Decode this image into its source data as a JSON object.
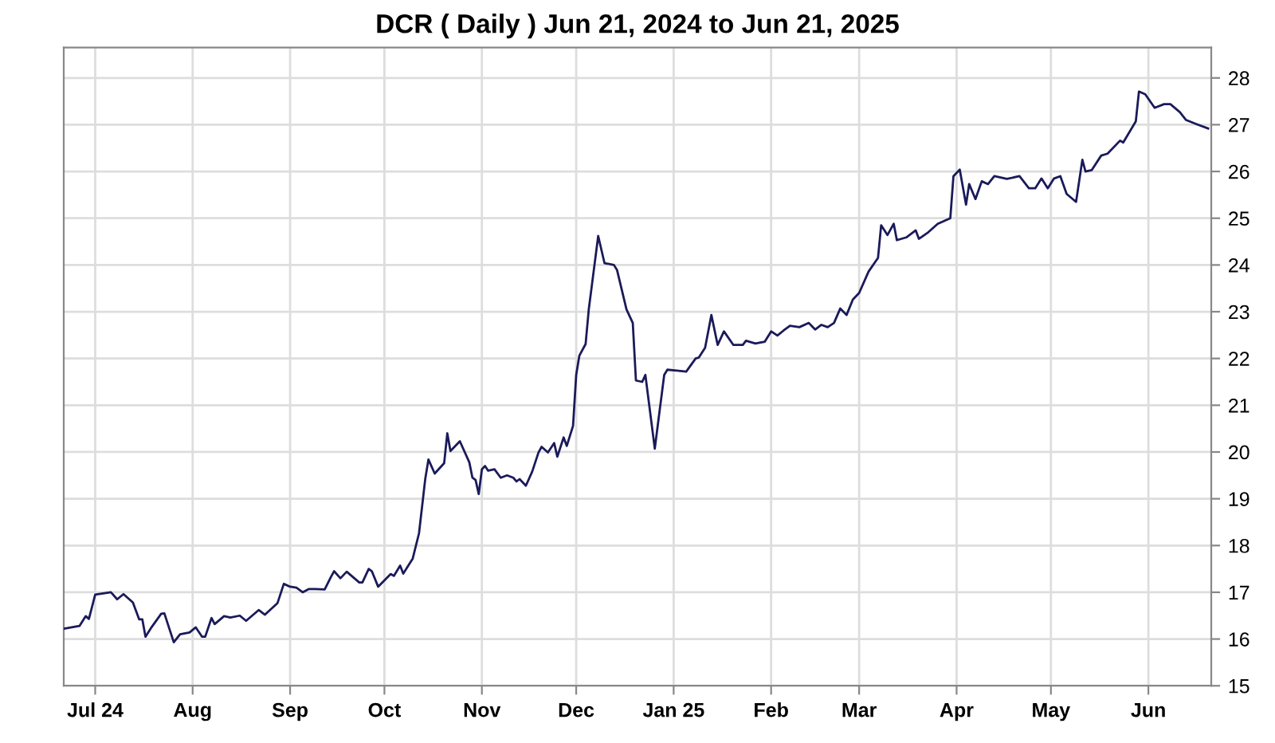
{
  "chart_data": {
    "type": "line",
    "title": "DCR ( Daily ) Jun 21, 2024 to Jun 21, 2025",
    "x": [
      "2024-06-21",
      "2024-06-26",
      "2024-06-28",
      "2024-06-29",
      "2024-07-01",
      "2024-07-06",
      "2024-07-08",
      "2024-07-10",
      "2024-07-13",
      "2024-07-15",
      "2024-07-16",
      "2024-07-17",
      "2024-07-19",
      "2024-07-22",
      "2024-07-23",
      "2024-07-26",
      "2024-07-28",
      "2024-07-31",
      "2024-08-02",
      "2024-08-04",
      "2024-08-05",
      "2024-08-07",
      "2024-08-08",
      "2024-08-11",
      "2024-08-13",
      "2024-08-16",
      "2024-08-18",
      "2024-08-22",
      "2024-08-24",
      "2024-08-28",
      "2024-08-30",
      "2024-09-01",
      "2024-09-03",
      "2024-09-05",
      "2024-09-07",
      "2024-09-09",
      "2024-09-12",
      "2024-09-14",
      "2024-09-15",
      "2024-09-17",
      "2024-09-19",
      "2024-09-23",
      "2024-09-24",
      "2024-09-26",
      "2024-09-27",
      "2024-09-29",
      "2024-10-03",
      "2024-10-04",
      "2024-10-06",
      "2024-10-07",
      "2024-10-10",
      "2024-10-12",
      "2024-10-14",
      "2024-10-15",
      "2024-10-17",
      "2024-10-20",
      "2024-10-21",
      "2024-10-22",
      "2024-10-25",
      "2024-10-28",
      "2024-10-29",
      "2024-10-30",
      "2024-10-31",
      "2024-11-01",
      "2024-11-02",
      "2024-11-03",
      "2024-11-05",
      "2024-11-07",
      "2024-11-09",
      "2024-11-11",
      "2024-11-12",
      "2024-11-13",
      "2024-11-15",
      "2024-11-17",
      "2024-11-19",
      "2024-11-20",
      "2024-11-22",
      "2024-11-24",
      "2024-11-25",
      "2024-11-27",
      "2024-11-28",
      "2024-11-30",
      "2024-12-01",
      "2024-12-02",
      "2024-12-04",
      "2024-12-05",
      "2024-12-08",
      "2024-12-10",
      "2024-12-13",
      "2024-12-14",
      "2024-12-17",
      "2024-12-19",
      "2024-12-20",
      "2024-12-22",
      "2024-12-23",
      "2024-12-26",
      "2024-12-27",
      "2024-12-29",
      "2024-12-30",
      "2025-01-02",
      "2025-01-05",
      "2025-01-08",
      "2025-01-09",
      "2025-01-11",
      "2025-01-13",
      "2025-01-15",
      "2025-01-17",
      "2025-01-20",
      "2025-01-23",
      "2025-01-24",
      "2025-01-27",
      "2025-01-30",
      "2025-02-01",
      "2025-02-03",
      "2025-02-05",
      "2025-02-07",
      "2025-02-10",
      "2025-02-13",
      "2025-02-15",
      "2025-02-17",
      "2025-02-19",
      "2025-02-21",
      "2025-02-23",
      "2025-02-25",
      "2025-02-27",
      "2025-03-01",
      "2025-03-04",
      "2025-03-07",
      "2025-03-08",
      "2025-03-10",
      "2025-03-12",
      "2025-03-13",
      "2025-03-16",
      "2025-03-19",
      "2025-03-20",
      "2025-03-23",
      "2025-03-26",
      "2025-03-30",
      "2025-03-31",
      "2025-04-02",
      "2025-04-04",
      "2025-04-05",
      "2025-04-07",
      "2025-04-09",
      "2025-04-11",
      "2025-04-13",
      "2025-04-17",
      "2025-04-21",
      "2025-04-24",
      "2025-04-26",
      "2025-04-28",
      "2025-04-30",
      "2025-05-02",
      "2025-05-04",
      "2025-05-06",
      "2025-05-09",
      "2025-05-11",
      "2025-05-12",
      "2025-05-14",
      "2025-05-17",
      "2025-05-19",
      "2025-05-23",
      "2025-05-24",
      "2025-05-28",
      "2025-05-29",
      "2025-05-31",
      "2025-06-03",
      "2025-06-06",
      "2025-06-08",
      "2025-06-11",
      "2025-06-13",
      "2025-06-16",
      "2025-06-20"
    ],
    "series": [
      {
        "color": "#1a1a5a",
        "values": [
          16.22,
          16.28,
          16.49,
          16.43,
          16.95,
          17.0,
          16.85,
          16.96,
          16.78,
          16.42,
          16.42,
          16.05,
          16.26,
          16.54,
          16.55,
          15.93,
          16.1,
          16.14,
          16.25,
          16.05,
          16.05,
          16.45,
          16.32,
          16.49,
          16.46,
          16.5,
          16.39,
          16.62,
          16.52,
          16.77,
          17.18,
          17.12,
          17.1,
          17.0,
          17.07,
          17.07,
          17.06,
          17.33,
          17.45,
          17.3,
          17.44,
          17.21,
          17.21,
          17.5,
          17.45,
          17.12,
          17.39,
          17.35,
          17.57,
          17.4,
          17.72,
          18.26,
          19.43,
          19.84,
          19.54,
          19.76,
          20.4,
          20.02,
          20.23,
          19.78,
          19.45,
          19.4,
          19.1,
          19.63,
          19.7,
          19.6,
          19.63,
          19.45,
          19.5,
          19.45,
          19.37,
          19.42,
          19.28,
          19.58,
          19.99,
          20.11,
          19.99,
          20.19,
          19.9,
          20.31,
          20.13,
          20.56,
          21.65,
          22.06,
          22.31,
          23.05,
          24.62,
          24.04,
          24.0,
          23.89,
          23.05,
          22.76,
          21.53,
          21.5,
          21.65,
          20.07,
          20.6,
          21.65,
          21.76,
          21.74,
          21.72,
          22.0,
          22.02,
          22.23,
          22.93,
          22.29,
          22.58,
          22.29,
          22.29,
          22.38,
          22.32,
          22.36,
          22.58,
          22.49,
          22.6,
          22.7,
          22.67,
          22.76,
          22.62,
          22.72,
          22.67,
          22.76,
          23.07,
          22.93,
          23.26,
          23.4,
          23.86,
          24.15,
          24.85,
          24.64,
          24.88,
          24.53,
          24.59,
          24.74,
          24.56,
          24.7,
          24.88,
          25.0,
          25.9,
          26.04,
          25.29,
          25.73,
          25.41,
          25.79,
          25.73,
          25.9,
          25.84,
          25.9,
          25.64,
          25.64,
          25.85,
          25.64,
          25.85,
          25.9,
          25.52,
          25.35,
          26.25,
          26.0,
          26.03,
          26.34,
          26.38,
          26.66,
          26.62,
          27.07,
          27.71,
          27.65,
          27.36,
          27.44,
          27.44,
          27.27,
          27.1,
          27.02,
          26.92
        ]
      }
    ],
    "xlim": [
      "2024-06-21",
      "2025-06-21"
    ],
    "xticks": [
      {
        "value": "2024-07-01",
        "label": "Jul 24"
      },
      {
        "value": "2024-08-01",
        "label": "Aug"
      },
      {
        "value": "2024-09-01",
        "label": "Sep"
      },
      {
        "value": "2024-10-01",
        "label": "Oct"
      },
      {
        "value": "2024-11-01",
        "label": "Nov"
      },
      {
        "value": "2024-12-01",
        "label": "Dec"
      },
      {
        "value": "2025-01-01",
        "label": "Jan 25"
      },
      {
        "value": "2025-02-01",
        "label": "Feb"
      },
      {
        "value": "2025-03-01",
        "label": "Mar"
      },
      {
        "value": "2025-04-01",
        "label": "Apr"
      },
      {
        "value": "2025-05-01",
        "label": "May"
      },
      {
        "value": "2025-06-01",
        "label": "Jun"
      }
    ],
    "ylim": [
      15,
      28.65
    ],
    "yticks": [
      15,
      16,
      17,
      18,
      19,
      20,
      21,
      22,
      23,
      24,
      25,
      26,
      27,
      28
    ],
    "grid": true,
    "legend": false,
    "marker": "none",
    "line_style": "solid"
  }
}
